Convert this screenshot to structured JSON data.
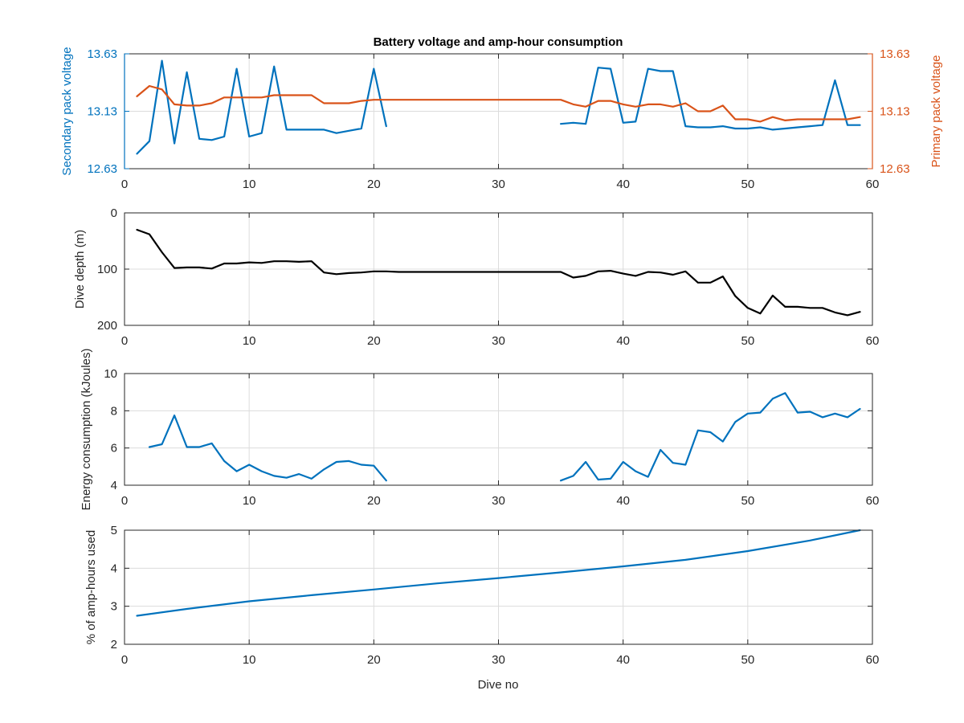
{
  "colors": {
    "secondary": "#0072BD",
    "primary": "#D95319",
    "depth": "#000000",
    "energy": "#0072BD",
    "amphours": "#0072BD",
    "axis": "#262626",
    "grid": "#dcdcdc"
  },
  "chart_data": [
    {
      "type": "line",
      "title": "Battery voltage and amp-hour consumption",
      "xlabel": "",
      "ylabel": "Secondary pack voltage",
      "ylabel_right": "Primary pack voltage",
      "xlim": [
        0,
        60
      ],
      "ylim": [
        12.63,
        13.63
      ],
      "ylim_right": [
        12.63,
        13.63
      ],
      "xticks": [
        0,
        10,
        20,
        30,
        40,
        50,
        60
      ],
      "yticks": [
        12.63,
        13.13,
        13.63
      ],
      "ytick_labels": [
        "12.63",
        "13.13",
        "13.63"
      ],
      "yticks_right": [
        12.63,
        13.13,
        13.63
      ],
      "ytick_labels_right": [
        "12.63",
        "13.13",
        "13.63"
      ],
      "grid": true,
      "series": [
        {
          "axis": "left",
          "color": "#0072BD",
          "x": [
            1,
            2,
            3,
            4,
            5,
            6,
            7,
            8,
            9,
            10,
            11,
            12,
            13,
            14,
            15,
            16,
            17,
            18,
            19,
            20,
            21,
            null,
            35,
            36,
            37,
            38,
            39,
            40,
            41,
            42,
            43,
            44,
            45,
            46,
            47,
            48,
            49,
            50,
            51,
            52,
            53,
            54,
            55,
            56,
            57,
            58,
            59
          ],
          "y": [
            12.76,
            12.87,
            13.57,
            12.85,
            13.47,
            12.89,
            12.88,
            12.91,
            13.5,
            12.91,
            12.94,
            13.52,
            12.97,
            12.97,
            12.97,
            12.97,
            12.94,
            12.96,
            12.98,
            13.5,
            13.0,
            null,
            13.02,
            13.03,
            13.02,
            13.51,
            13.5,
            13.03,
            13.04,
            13.5,
            13.48,
            13.48,
            13.0,
            12.99,
            12.99,
            13.0,
            12.98,
            12.98,
            12.99,
            12.97,
            12.98,
            12.99,
            13.0,
            13.01,
            13.4,
            13.01,
            13.01
          ]
        },
        {
          "axis": "right",
          "color": "#D95319",
          "x": [
            1,
            2,
            3,
            4,
            5,
            6,
            7,
            8,
            9,
            10,
            11,
            12,
            13,
            14,
            15,
            16,
            17,
            18,
            19,
            20,
            21,
            22,
            23,
            24,
            25,
            26,
            27,
            28,
            29,
            30,
            31,
            32,
            33,
            34,
            35,
            36,
            37,
            38,
            39,
            40,
            41,
            42,
            43,
            44,
            45,
            46,
            47,
            48,
            49,
            50,
            51,
            52,
            53,
            54,
            55,
            56,
            57,
            58,
            59
          ],
          "y": [
            13.26,
            13.35,
            13.32,
            13.19,
            13.18,
            13.18,
            13.2,
            13.25,
            13.25,
            13.25,
            13.25,
            13.27,
            13.27,
            13.27,
            13.27,
            13.2,
            13.2,
            13.2,
            13.22,
            13.23,
            13.23,
            13.23,
            13.23,
            13.23,
            13.23,
            13.23,
            13.23,
            13.23,
            13.23,
            13.23,
            13.23,
            13.23,
            13.23,
            13.23,
            13.23,
            13.19,
            13.17,
            13.22,
            13.22,
            13.19,
            13.17,
            13.19,
            13.19,
            13.17,
            13.2,
            13.13,
            13.13,
            13.18,
            13.06,
            13.06,
            13.04,
            13.08,
            13.05,
            13.06,
            13.06,
            13.06,
            13.06,
            13.06,
            13.08
          ]
        }
      ]
    },
    {
      "type": "line",
      "title": "",
      "xlabel": "",
      "ylabel": "Dive depth (m)",
      "xlim": [
        0,
        60
      ],
      "ylim": [
        0,
        200
      ],
      "y_reversed": true,
      "xticks": [
        0,
        10,
        20,
        30,
        40,
        50,
        60
      ],
      "yticks": [
        0,
        100,
        200
      ],
      "ytick_labels": [
        "0",
        "100",
        "200"
      ],
      "grid": true,
      "series": [
        {
          "axis": "left",
          "color": "#000000",
          "x": [
            1,
            2,
            3,
            4,
            5,
            6,
            7,
            8,
            9,
            10,
            11,
            12,
            13,
            14,
            15,
            16,
            17,
            18,
            19,
            20,
            21,
            22,
            23,
            24,
            25,
            26,
            27,
            28,
            29,
            30,
            31,
            32,
            33,
            34,
            35,
            36,
            37,
            38,
            39,
            40,
            41,
            42,
            43,
            44,
            45,
            46,
            47,
            48,
            49,
            50,
            51,
            52,
            53,
            54,
            55,
            56,
            57,
            58,
            59
          ],
          "y": [
            30,
            38,
            70,
            98,
            97,
            97,
            99,
            90,
            90,
            88,
            89,
            86,
            86,
            87,
            86,
            106,
            109,
            107,
            106,
            104,
            104,
            105,
            105,
            105,
            105,
            105,
            105,
            105,
            105,
            105,
            105,
            105,
            105,
            105,
            105,
            115,
            112,
            104,
            103,
            108,
            112,
            105,
            106,
            110,
            104,
            124,
            124,
            113,
            148,
            169,
            179,
            147,
            167,
            167,
            169,
            169,
            177,
            182,
            176
          ]
        }
      ]
    },
    {
      "type": "line",
      "title": "",
      "xlabel": "",
      "ylabel": "Energy consumption (kJoules)",
      "xlim": [
        0,
        60
      ],
      "ylim": [
        4,
        10
      ],
      "xticks": [
        0,
        10,
        20,
        30,
        40,
        50,
        60
      ],
      "yticks": [
        4,
        6,
        8,
        10
      ],
      "ytick_labels": [
        "4",
        "6",
        "8",
        "10"
      ],
      "grid": true,
      "series": [
        {
          "axis": "left",
          "color": "#0072BD",
          "x": [
            2,
            3,
            4,
            5,
            6,
            7,
            8,
            9,
            10,
            11,
            12,
            13,
            14,
            15,
            16,
            17,
            18,
            19,
            20,
            21,
            null,
            35,
            36,
            37,
            38,
            39,
            40,
            41,
            42,
            43,
            44,
            45,
            46,
            47,
            48,
            49,
            50,
            51,
            52,
            53,
            54,
            55,
            56,
            57,
            58,
            59
          ],
          "y": [
            6.05,
            6.2,
            7.75,
            6.05,
            6.05,
            6.25,
            5.3,
            4.75,
            5.1,
            4.75,
            4.5,
            4.4,
            4.6,
            4.35,
            4.85,
            5.25,
            5.3,
            5.1,
            5.05,
            4.25,
            null,
            4.25,
            4.5,
            5.25,
            4.3,
            4.35,
            5.25,
            4.75,
            4.45,
            5.9,
            5.2,
            5.1,
            6.95,
            6.85,
            6.35,
            7.4,
            7.85,
            7.9,
            8.65,
            8.95,
            7.9,
            7.95,
            7.65,
            7.85,
            7.65,
            8.1
          ]
        }
      ]
    },
    {
      "type": "line",
      "title": "",
      "xlabel": "Dive no",
      "ylabel": "% of amp-hours used",
      "xlim": [
        0,
        60
      ],
      "ylim": [
        2,
        5
      ],
      "xticks": [
        0,
        10,
        20,
        30,
        40,
        50,
        60
      ],
      "yticks": [
        2,
        3,
        4,
        5
      ],
      "ytick_labels": [
        "2",
        "3",
        "4",
        "5"
      ],
      "grid": true,
      "series": [
        {
          "axis": "left",
          "color": "#0072BD",
          "x": [
            1,
            5,
            10,
            15,
            20,
            25,
            30,
            35,
            40,
            45,
            50,
            55,
            59
          ],
          "y": [
            2.75,
            2.93,
            3.13,
            3.29,
            3.44,
            3.6,
            3.74,
            3.89,
            4.05,
            4.22,
            4.45,
            4.73,
            5.0
          ]
        }
      ]
    }
  ]
}
